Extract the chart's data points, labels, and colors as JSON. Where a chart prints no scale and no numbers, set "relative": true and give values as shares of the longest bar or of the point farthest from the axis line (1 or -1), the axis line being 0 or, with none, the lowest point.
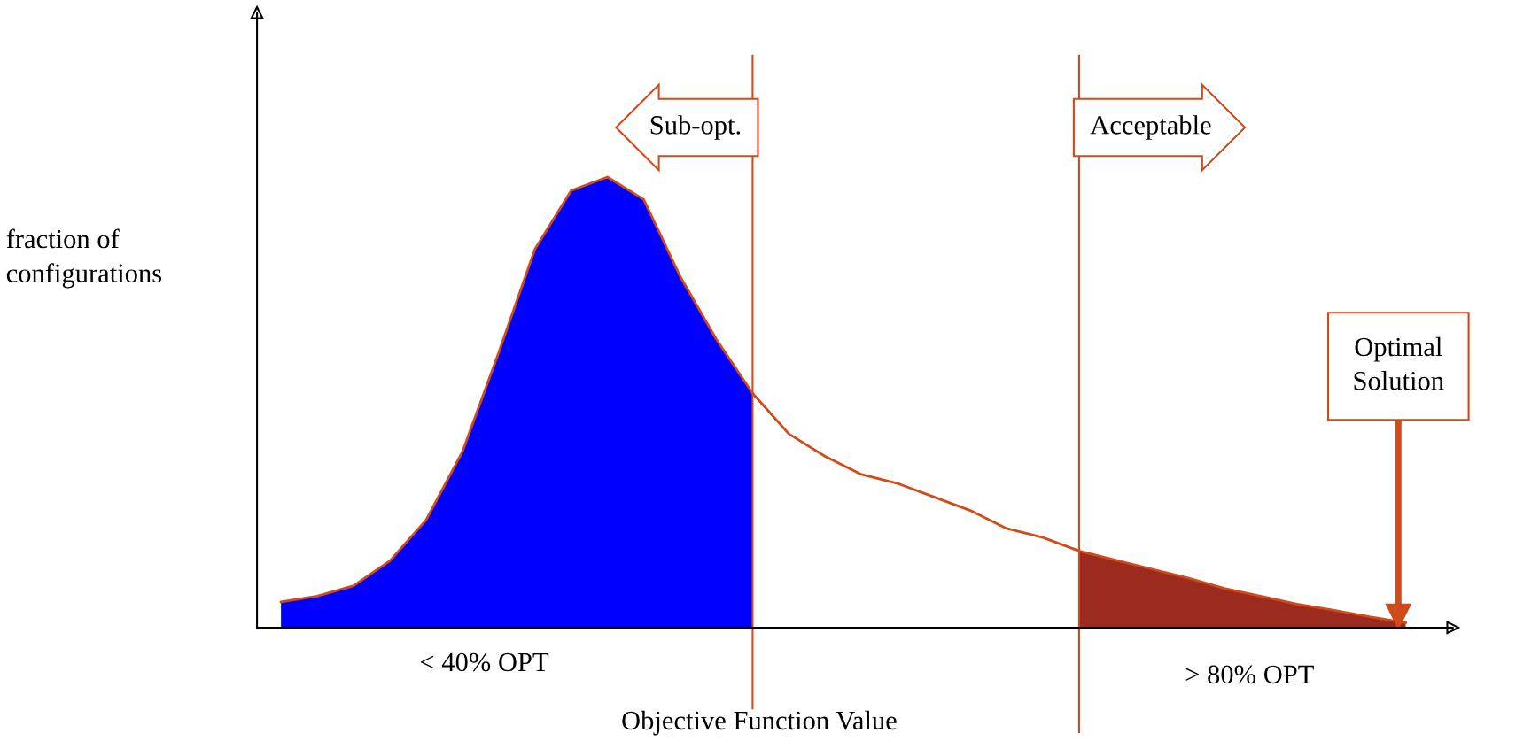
{
  "chart_data": {
    "type": "area",
    "relative": true,
    "xlabel": "Objective Function Value",
    "ylabel": "fraction of\nconfigurations",
    "categories": [
      null,
      null,
      null,
      null,
      null,
      null,
      null,
      null,
      null,
      null,
      null,
      null,
      null,
      null,
      null,
      null,
      null,
      null,
      null,
      null,
      null,
      null,
      null,
      null,
      null,
      null,
      null,
      null,
      null,
      null,
      null,
      null
    ],
    "series": [
      {
        "color": "#0000ff",
        "values": [
          0.057,
          0.07,
          0.093,
          0.148,
          0.239,
          0.39,
          0.61,
          0.84,
          0.97,
          1.0,
          0.95,
          0.78,
          0.64,
          0.52,
          null,
          null,
          null,
          null,
          null,
          null,
          null,
          null,
          null,
          null,
          null,
          null,
          null,
          null,
          null,
          null,
          null,
          null
        ]
      },
      {
        "color": "#9c2b1f",
        "values": [
          null,
          null,
          null,
          null,
          null,
          null,
          null,
          null,
          null,
          null,
          null,
          null,
          null,
          null,
          null,
          null,
          null,
          null,
          null,
          null,
          null,
          null,
          0.17,
          0.15,
          0.13,
          0.11,
          0.087,
          0.07,
          0.052,
          0.039,
          0.024,
          0.011
        ]
      },
      {
        "type": "line",
        "color": "#d04a1a",
        "values": [
          0.057,
          0.07,
          0.093,
          0.148,
          0.239,
          0.39,
          0.61,
          0.84,
          0.97,
          1.0,
          0.95,
          0.78,
          0.64,
          0.52,
          0.43,
          0.38,
          0.34,
          0.32,
          0.29,
          0.26,
          0.22,
          0.2,
          0.17,
          0.15,
          0.13,
          0.11,
          0.087,
          0.07,
          0.052,
          0.039,
          0.024,
          0.011
        ]
      }
    ],
    "annotations": [
      "< 40% OPT",
      "> 80% OPT",
      "Optimal Solution",
      "Sub-opt.",
      "Acceptable"
    ],
    "grid": false
  }
}
